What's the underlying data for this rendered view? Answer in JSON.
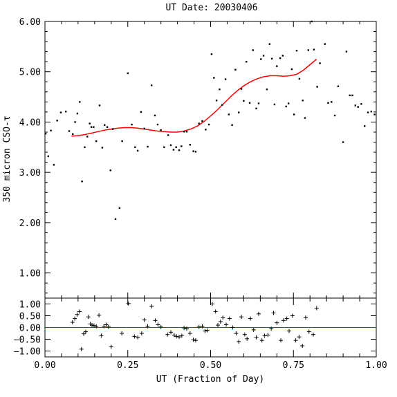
{
  "chart_data": [
    {
      "type": "scatter",
      "title": "UT Date: 20030406",
      "xlabel": "",
      "ylabel": "350 micron CSO-τ",
      "xlim": [
        0.0,
        1.0
      ],
      "ylim": [
        0.5,
        6.0
      ],
      "ytick_labels": [
        "1.00",
        "2.00",
        "3.00",
        "4.00",
        "5.00",
        "6.00"
      ],
      "ytick_values": [
        1.0,
        2.0,
        3.0,
        4.0,
        5.0,
        6.0
      ],
      "series": [
        {
          "kind": "points",
          "color": "#000000",
          "x": [
            0.002,
            0.01,
            0.018,
            0.027,
            0.037,
            0.048,
            0.063,
            0.073,
            0.084,
            0.091,
            0.098,
            0.105,
            0.112,
            0.12,
            0.128,
            0.135,
            0.14,
            0.147,
            0.155,
            0.165,
            0.173,
            0.18,
            0.188,
            0.198,
            0.205,
            0.213,
            0.225,
            0.233,
            0.25,
            0.262,
            0.272,
            0.28,
            0.29,
            0.3,
            0.31,
            0.322,
            0.332,
            0.34,
            0.35,
            0.36,
            0.372,
            0.38,
            0.388,
            0.396,
            0.405,
            0.412,
            0.42,
            0.428,
            0.438,
            0.448,
            0.455,
            0.465,
            0.475,
            0.485,
            0.495,
            0.503,
            0.51,
            0.518,
            0.527,
            0.535,
            0.545,
            0.555,
            0.565,
            0.575,
            0.585,
            0.593,
            0.6,
            0.608,
            0.618,
            0.628,
            0.638,
            0.645,
            0.652,
            0.66,
            0.67,
            0.678,
            0.685,
            0.693,
            0.7,
            0.71,
            0.718,
            0.728,
            0.735,
            0.745,
            0.752,
            0.76,
            0.768,
            0.778,
            0.785,
            0.795,
            0.805,
            0.812,
            0.822,
            0.83,
            0.845,
            0.855,
            0.865,
            0.875,
            0.885,
            0.9,
            0.91,
            0.92,
            0.928,
            0.937,
            0.945,
            0.955,
            0.965,
            0.975,
            0.985,
            0.995
          ],
          "y": [
            3.77,
            3.32,
            3.83,
            3.15,
            4.03,
            4.19,
            4.21,
            3.82,
            3.76,
            4.0,
            4.17,
            4.4,
            2.82,
            3.5,
            3.71,
            3.97,
            3.9,
            3.9,
            3.62,
            4.33,
            3.49,
            3.94,
            3.9,
            3.04,
            3.86,
            2.07,
            2.29,
            3.62,
            4.97,
            3.95,
            3.5,
            3.43,
            4.2,
            3.87,
            3.51,
            4.73,
            4.13,
            3.95,
            3.84,
            3.5,
            3.74,
            3.54,
            3.45,
            3.5,
            3.44,
            3.52,
            3.81,
            3.81,
            3.55,
            3.42,
            3.41,
            3.97,
            4.02,
            3.85,
            3.95,
            5.35,
            4.88,
            4.43,
            4.65,
            4.34,
            4.85,
            4.15,
            3.94,
            5.04,
            4.19,
            4.66,
            4.42,
            5.2,
            4.38,
            5.43,
            4.27,
            4.37,
            5.25,
            5.32,
            4.65,
            5.55,
            5.26,
            4.35,
            5.11,
            5.27,
            5.32,
            4.31,
            4.37,
            5.05,
            4.15,
            5.42,
            4.86,
            4.43,
            4.08,
            5.43,
            6.0,
            5.44,
            4.7,
            5.17,
            5.55,
            4.38,
            4.4,
            4.13,
            4.71,
            3.6,
            5.4,
            4.53,
            4.53,
            4.33,
            4.3,
            4.36,
            3.92,
            4.19,
            4.21,
            4.15
          ]
        },
        {
          "kind": "fit-line",
          "color": "#ff0000",
          "x": [
            0.08,
            0.1,
            0.12,
            0.14,
            0.16,
            0.18,
            0.2,
            0.22,
            0.24,
            0.26,
            0.28,
            0.3,
            0.32,
            0.34,
            0.36,
            0.38,
            0.4,
            0.42,
            0.44,
            0.46,
            0.48,
            0.5,
            0.52,
            0.54,
            0.56,
            0.58,
            0.6,
            0.62,
            0.64,
            0.66,
            0.68,
            0.7,
            0.72,
            0.74,
            0.76,
            0.78,
            0.8,
            0.82
          ],
          "y": [
            3.72,
            3.73,
            3.75,
            3.78,
            3.81,
            3.84,
            3.86,
            3.88,
            3.89,
            3.89,
            3.88,
            3.86,
            3.84,
            3.82,
            3.81,
            3.8,
            3.8,
            3.82,
            3.86,
            3.92,
            4.01,
            4.12,
            4.24,
            4.37,
            4.5,
            4.62,
            4.72,
            4.8,
            4.86,
            4.9,
            4.92,
            4.92,
            4.91,
            4.92,
            4.95,
            5.03,
            5.14,
            5.25
          ]
        }
      ]
    },
    {
      "type": "scatter",
      "title": "",
      "xlabel": "UT (Fraction of Day)",
      "ylabel": "",
      "xlim": [
        0.0,
        1.0
      ],
      "ylim": [
        -1.25,
        1.25
      ],
      "ytick_labels": [
        "1.00",
        "0.50",
        "0.00",
        "−0.50",
        "−1.00"
      ],
      "ytick_values": [
        1.0,
        0.5,
        0.0,
        -0.5,
        -1.0
      ],
      "xtick_labels": [
        "0.00",
        "0.25",
        "0.50",
        "0.75",
        "1.00"
      ],
      "xtick_values": [
        0.0,
        0.25,
        0.5,
        0.75,
        1.0
      ],
      "series": [
        {
          "kind": "residual-crosses",
          "color": "#000000",
          "x": [
            0.083,
            0.09,
            0.097,
            0.104,
            0.11,
            0.117,
            0.123,
            0.131,
            0.137,
            0.142,
            0.148,
            0.155,
            0.163,
            0.17,
            0.178,
            0.185,
            0.192,
            0.2,
            0.232,
            0.252,
            0.27,
            0.28,
            0.292,
            0.3,
            0.31,
            0.322,
            0.333,
            0.341,
            0.35,
            0.37,
            0.38,
            0.39,
            0.397,
            0.405,
            0.413,
            0.42,
            0.428,
            0.438,
            0.448,
            0.455,
            0.465,
            0.475,
            0.483,
            0.49,
            0.505,
            0.515,
            0.522,
            0.53,
            0.537,
            0.547,
            0.557,
            0.567,
            0.577,
            0.585,
            0.593,
            0.603,
            0.61,
            0.62,
            0.63,
            0.638,
            0.645,
            0.655,
            0.663,
            0.673,
            0.683,
            0.69,
            0.7,
            0.712,
            0.72,
            0.73,
            0.737,
            0.747,
            0.757,
            0.767,
            0.777,
            0.787,
            0.797,
            0.81,
            0.82
          ],
          "y": [
            0.22,
            0.38,
            0.55,
            0.68,
            -0.92,
            -0.27,
            -0.18,
            0.45,
            0.15,
            0.1,
            0.08,
            0.05,
            0.52,
            -0.35,
            0.05,
            0.12,
            0.02,
            -0.82,
            -0.25,
            1.02,
            -0.38,
            -0.42,
            -0.25,
            0.32,
            0.05,
            0.9,
            0.3,
            0.12,
            0.02,
            -0.3,
            -0.2,
            -0.32,
            -0.38,
            -0.4,
            -0.35,
            -0.02,
            -0.05,
            -0.25,
            -0.52,
            -0.55,
            0.02,
            0.05,
            -0.15,
            -0.12,
            1.0,
            0.68,
            0.1,
            0.25,
            0.42,
            0.12,
            0.38,
            0.0,
            -0.25,
            -0.6,
            0.45,
            -0.3,
            -0.48,
            0.38,
            -0.1,
            -0.42,
            0.58,
            -0.55,
            -0.35,
            -0.32,
            -0.05,
            0.62,
            0.2,
            -0.55,
            0.3,
            0.38,
            -0.15,
            0.5,
            -0.55,
            -0.4,
            -0.78,
            0.42,
            -0.18,
            -0.3,
            0.82
          ]
        },
        {
          "kind": "zero-line",
          "color": "#ff0000",
          "x": [
            0.0,
            1.0
          ],
          "y": [
            0.0,
            0.0
          ]
        }
      ]
    }
  ]
}
